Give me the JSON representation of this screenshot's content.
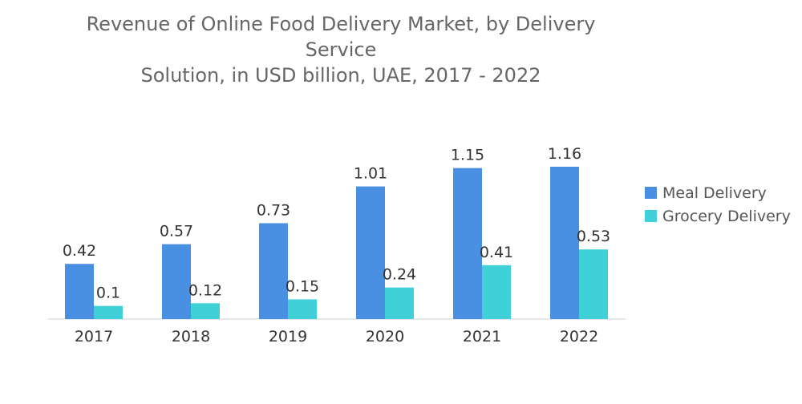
{
  "chart_data": {
    "type": "bar",
    "title": "Revenue of Online Food Delivery Market, by Delivery Service Solution, in USD billion, UAE, 2017 - 2022",
    "title_lines": [
      "Revenue of Online Food Delivery Market, by Delivery Service",
      "Solution, in USD billion, UAE, 2017 - 2022"
    ],
    "categories": [
      "2017",
      "2018",
      "2019",
      "2020",
      "2021",
      "2022"
    ],
    "series": [
      {
        "name": "Meal Delivery",
        "color": "#4a90e2",
        "values": [
          0.42,
          0.57,
          0.73,
          1.01,
          1.15,
          1.16
        ],
        "labels": [
          "0.42",
          "0.57",
          "0.73",
          "1.01",
          "1.15",
          "1.16"
        ]
      },
      {
        "name": "Grocery Delivery",
        "color": "#3fd0d8",
        "values": [
          0.1,
          0.12,
          0.15,
          0.24,
          0.41,
          0.53
        ],
        "labels": [
          "0.1",
          "0.12",
          "0.15",
          "0.24",
          "0.41",
          "0.53"
        ]
      }
    ],
    "xlabel": "",
    "ylabel": "",
    "ylim": [
      0,
      1.16
    ],
    "grid": false,
    "legend_position": "right"
  }
}
